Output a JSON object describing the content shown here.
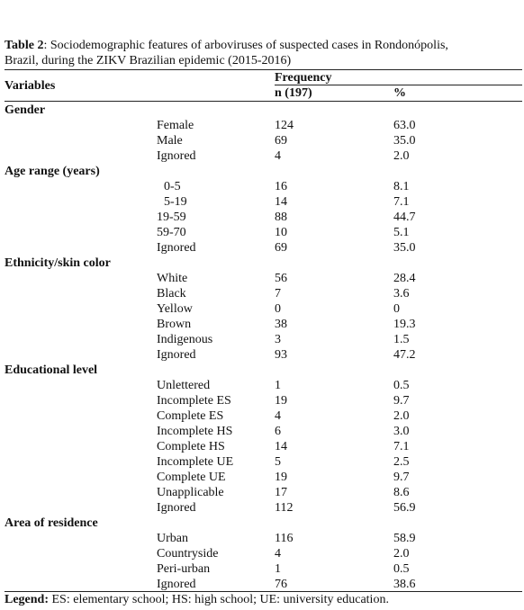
{
  "table_title": {
    "label": "Table 2",
    "text": ": Sociodemographic features of arboviruses of suspected cases in Rondonópolis, Brazil, during the ZIKV Brazilian epidemic (2015-2016)"
  },
  "header": {
    "variables": "Variables",
    "frequency": "Frequency",
    "n": "n (197)",
    "percent": "%"
  },
  "groups": [
    {
      "name": "Gender",
      "rows": [
        [
          "Female",
          "124",
          "63.0"
        ],
        [
          "Male",
          "69",
          "35.0"
        ],
        [
          "Ignored",
          "4",
          "2.0"
        ]
      ]
    },
    {
      "name": "Age range (years)",
      "rows": [
        [
          "0-5",
          "16",
          "8.1"
        ],
        [
          "5-19",
          "14",
          "7.1"
        ],
        [
          "19-59",
          "88",
          "44.7"
        ],
        [
          "59-70",
          "10",
          "5.1"
        ],
        [
          "Ignored",
          "69",
          "35.0"
        ]
      ]
    },
    {
      "name": "Ethnicity/skin color",
      "rows": [
        [
          "White",
          "56",
          "28.4"
        ],
        [
          "Black",
          "7",
          "3.6"
        ],
        [
          "Yellow",
          "0",
          "0"
        ],
        [
          "Brown",
          "38",
          "19.3"
        ],
        [
          "Indigenous",
          "3",
          "1.5"
        ],
        [
          "Ignored",
          "93",
          "47.2"
        ]
      ]
    },
    {
      "name": "Educational level",
      "rows": [
        [
          "Unlettered",
          "1",
          "0.5"
        ],
        [
          "Incomplete ES",
          "19",
          "9.7"
        ],
        [
          "Complete ES",
          "4",
          "2.0"
        ],
        [
          "Incomplete HS",
          "6",
          "3.0"
        ],
        [
          "Complete HS",
          "14",
          "7.1"
        ],
        [
          "Incomplete UE",
          "5",
          "2.5"
        ],
        [
          "Complete UE",
          "19",
          "9.7"
        ],
        [
          "Unapplicable",
          "17",
          "8.6"
        ],
        [
          "Ignored",
          "112",
          "56.9"
        ]
      ]
    },
    {
      "name": "Area of residence",
      "rows": [
        [
          "Urban",
          "116",
          "58.9"
        ],
        [
          "Countryside",
          "4",
          "2.0"
        ],
        [
          "Peri-urban",
          "1",
          "0.5"
        ],
        [
          "Ignored",
          "76",
          "38.6"
        ]
      ]
    }
  ],
  "legend": {
    "label": "Legend:",
    "text": " ES: elementary school; HS: high school; UE: university education."
  }
}
